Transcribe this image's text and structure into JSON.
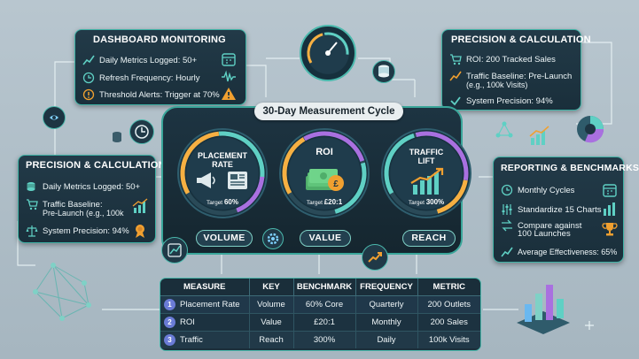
{
  "cycle_title": "30-Day Measurement Cycle",
  "dashboard_monitoring": {
    "title": "DASHBOARD MONITORING",
    "rows": [
      "Daily Metrics Logged: 50+",
      "Refresh Frequency: Hourly",
      "Threshold Alerts: Trigger at 70%"
    ]
  },
  "precision_right": {
    "title": "PRECISION & CALCULATION",
    "rows": [
      "ROI: 200 Tracked Sales",
      "Traffic Baseline: Pre-Launch",
      "(e.g., 100k Visits)",
      "System Precision: 94%"
    ]
  },
  "precision_left": {
    "title": "PRECISION & CALCULATION",
    "rows": [
      "Daily Metrics Logged: 50+",
      "Traffic Baseline:",
      "Pre-Launch (e.g., 100k",
      "System Precision: 94%"
    ]
  },
  "reporting": {
    "title": "REPORTING & BENCHMARKS",
    "rows": [
      "Monthly Cycles",
      "Standardize 15 Charts",
      "Compare against",
      "100 Launches",
      "Average Effectiveness: 65%"
    ]
  },
  "gauges": [
    {
      "title_1": "PLACEMENT",
      "title_2": "RATE",
      "target_label": "Target",
      "target_value": "60%",
      "pill": "VOLUME"
    },
    {
      "title_1": "ROI",
      "title_2": "",
      "target_label": "Target",
      "target_value": "£20:1",
      "pill": "VALUE"
    },
    {
      "title_1": "TRAFFIC",
      "title_2": "LIFT",
      "target_label": "Target",
      "target_value": "300%",
      "pill": "REACH"
    }
  ],
  "table": {
    "headers": [
      "MEASURE",
      "KEY",
      "BENCHMARK",
      "FREQUENCY",
      "METRIC"
    ],
    "rows": [
      {
        "num": "1",
        "measure": "Placement Rate",
        "key": "Volume",
        "benchmark": "60% Core",
        "frequency": "Quarterly",
        "metric": "200 Outlets"
      },
      {
        "num": "2",
        "measure": "ROI",
        "key": "Value",
        "benchmark": "£20:1",
        "frequency": "Monthly",
        "metric": "200 Sales"
      },
      {
        "num": "3",
        "measure": "Traffic",
        "key": "Reach",
        "benchmark": "300%",
        "frequency": "Daily",
        "metric": "100k Visits"
      }
    ]
  },
  "colors": {
    "accent_teal": "#3fb3a6",
    "panel_bg": "#1d3442",
    "alert_orange": "#f0a030",
    "gauge_ring_1": "#f6b042",
    "gauge_ring_2": "#5fd0c4",
    "gauge_ring_3": "#a970e0"
  },
  "icons": [
    "calendar-icon",
    "waveform-icon",
    "alert-triangle-icon",
    "cart-icon",
    "trend-icon",
    "scale-icon",
    "coin-stack-icon",
    "ribbon-icon",
    "megaphone-icon",
    "newspaper-icon",
    "money-stack-icon",
    "bar-chart-up-icon",
    "gear-icon",
    "compass-gauge-icon",
    "database-icon",
    "clock-icon",
    "network-icon",
    "trophy-icon",
    "pie-chart-icon"
  ]
}
